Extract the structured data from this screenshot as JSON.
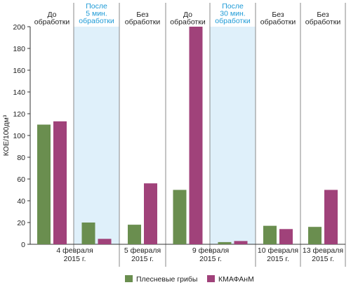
{
  "chart_data": {
    "type": "bar",
    "ylabel": "КОЕ/100дм³",
    "ylim": [
      0,
      200
    ],
    "yticks": [
      0,
      20,
      40,
      60,
      80,
      100,
      120,
      140,
      160,
      180,
      200
    ],
    "grid": false,
    "legend_position": "bottom",
    "series": [
      {
        "name": "Плесневые грибы",
        "color": "#6a8e4f",
        "values": [
          110,
          20,
          18,
          50,
          2,
          17,
          16
        ]
      },
      {
        "name": "КМАФАнМ",
        "color": "#a0427a",
        "values": [
          113,
          5,
          56,
          200,
          3,
          14,
          50
        ]
      }
    ],
    "headers": [
      {
        "lines": [
          "До",
          "обработки"
        ],
        "highlight": false
      },
      {
        "lines": [
          "После",
          "5 мин.",
          "обработки"
        ],
        "highlight": true
      },
      {
        "lines": [
          "Без",
          "обработки"
        ],
        "highlight": false
      },
      {
        "lines": [
          "До",
          "обработки"
        ],
        "highlight": false
      },
      {
        "lines": [
          "После",
          "30 мин.",
          "обработки"
        ],
        "highlight": true
      },
      {
        "lines": [
          "Без",
          "обработки"
        ],
        "highlight": false
      },
      {
        "lines": [
          "Без",
          "обработки"
        ],
        "highlight": false
      }
    ],
    "date_groups": [
      {
        "lines": [
          "4 февраля",
          "2015 г."
        ],
        "columns": [
          0,
          1
        ]
      },
      {
        "lines": [
          "5 февраля",
          "2015 г."
        ],
        "columns": [
          2
        ]
      },
      {
        "lines": [
          "9 февраля",
          "2015 г."
        ],
        "columns": [
          3,
          4
        ]
      },
      {
        "lines": [
          "10 февраля",
          "2015 г."
        ],
        "columns": [
          5
        ]
      },
      {
        "lines": [
          "13 февраля",
          "2015 г."
        ],
        "columns": [
          6
        ]
      }
    ],
    "colors": {
      "highlight_fill": "#dff0fa",
      "highlight_text": "#1d9ad6",
      "divider": "#8a8a8a"
    }
  }
}
